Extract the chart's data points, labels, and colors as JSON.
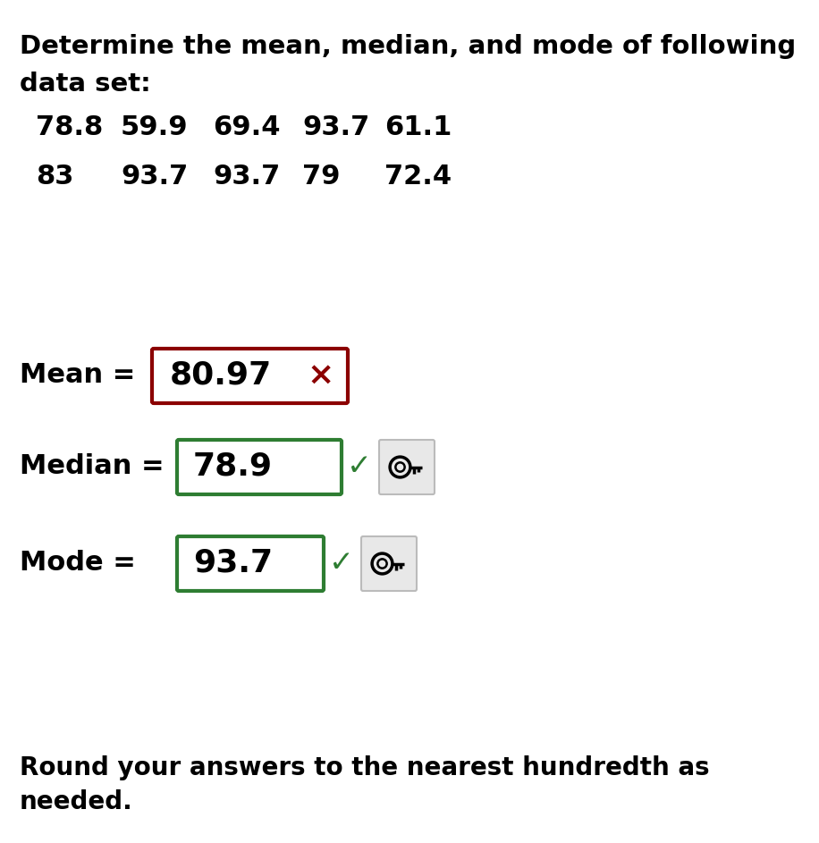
{
  "title_line1": "Determine the mean, median, and mode of following",
  "title_line2": "data set:",
  "data_row1_vals": [
    "78.8",
    "59.9",
    "69.4",
    "93.7",
    "61.1"
  ],
  "data_row2_vals": [
    "83",
    "93.7",
    "93.7",
    "79",
    "72.4"
  ],
  "mean_label": "Mean =",
  "mean_value": "80.97",
  "mean_correct": false,
  "median_label": "Median =",
  "median_value": "78.9",
  "median_correct": true,
  "mode_label": "Mode =",
  "mode_value": "93.7",
  "mode_correct": true,
  "footer_line1": "Round your answers to the nearest hundredth as",
  "footer_line2": "needed.",
  "bg_color": "#ffffff",
  "text_color": "#000000",
  "box_correct_color": "#2e7d32",
  "box_incorrect_color": "#8b0000",
  "check_color": "#2e7d32",
  "cross_color": "#8b0000",
  "key_bg": "#e8e8e8",
  "key_border": "#bbbbbb"
}
